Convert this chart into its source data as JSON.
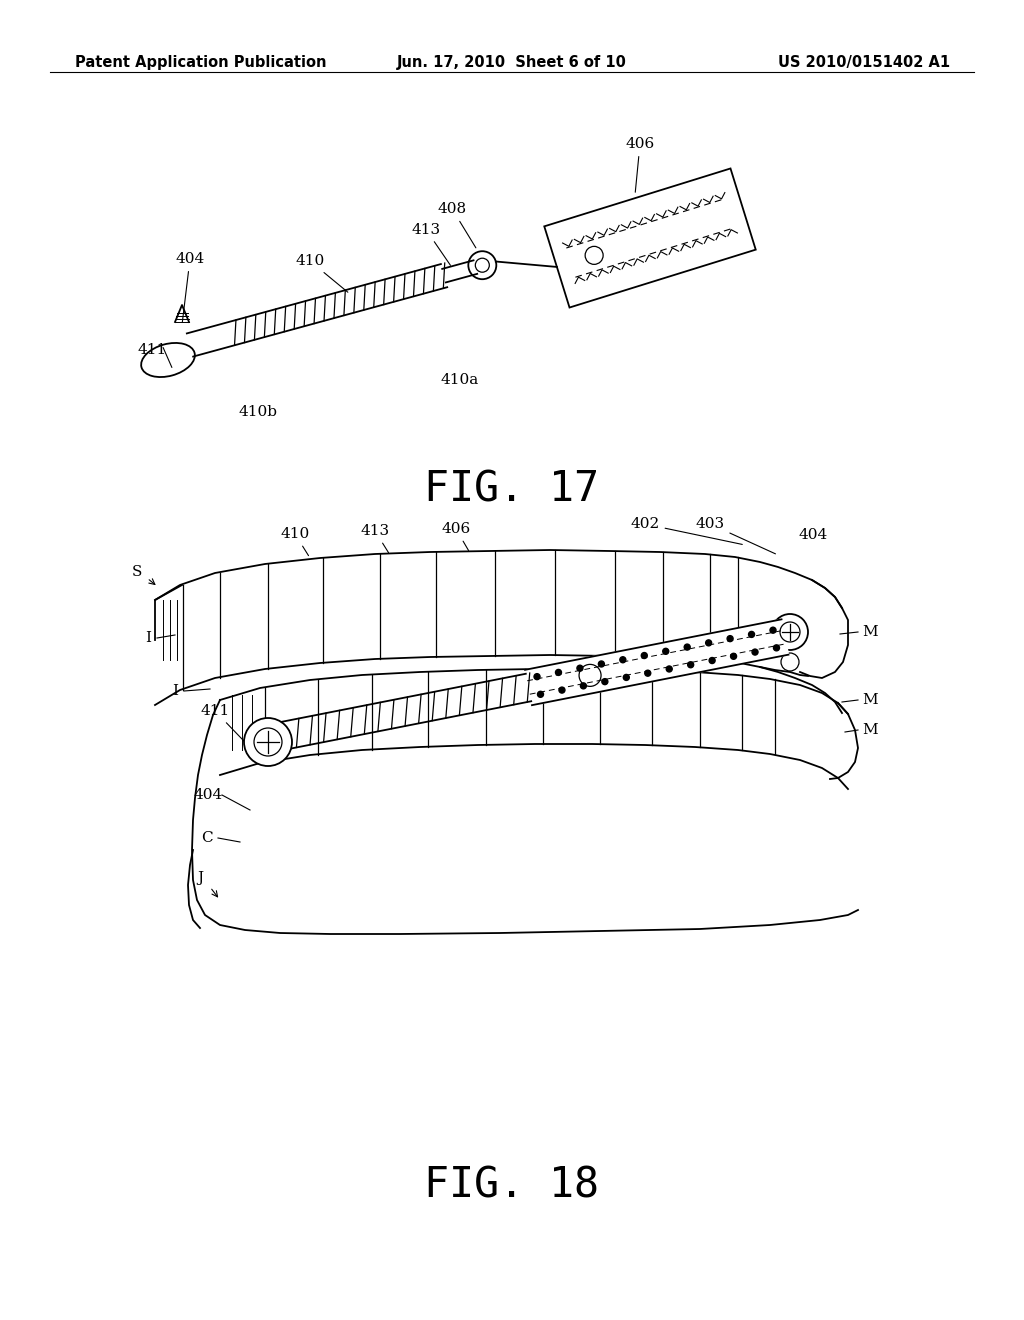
{
  "background_color": "#ffffff",
  "header": {
    "left_text": "Patent Application Publication",
    "center_text": "Jun. 17, 2010  Sheet 6 of 10",
    "right_text": "US 2010/0151402 A1",
    "fontsize": 10.5,
    "fontfamily": "sans-serif"
  },
  "line_color": "#000000",
  "label_fontsize": 11,
  "label_fontfamily": "serif",
  "fig17_caption": "FIG. 17",
  "fig18_caption": "FIG. 18"
}
